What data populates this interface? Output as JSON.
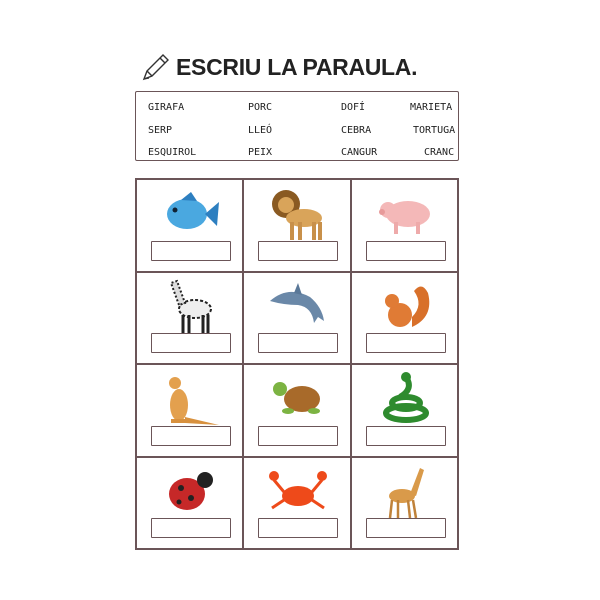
{
  "title": "ESCRIU LA PARAULA.",
  "title_icon": "pencil-icon",
  "words": [
    [
      "GIRAFA",
      "PORC",
      "DOFÍ",
      "MARIETA"
    ],
    [
      "SERP",
      "LLEÓ",
      "CEBRA",
      "TORTUGA"
    ],
    [
      "ESQUIROL",
      "PEIX",
      "CANGUR",
      "CRANC"
    ]
  ],
  "animals": [
    "fish",
    "lion",
    "pig",
    "zebra",
    "dolphin",
    "squirrel",
    "kangaroo",
    "turtle",
    "snake",
    "ladybug",
    "crab",
    "giraffe"
  ]
}
